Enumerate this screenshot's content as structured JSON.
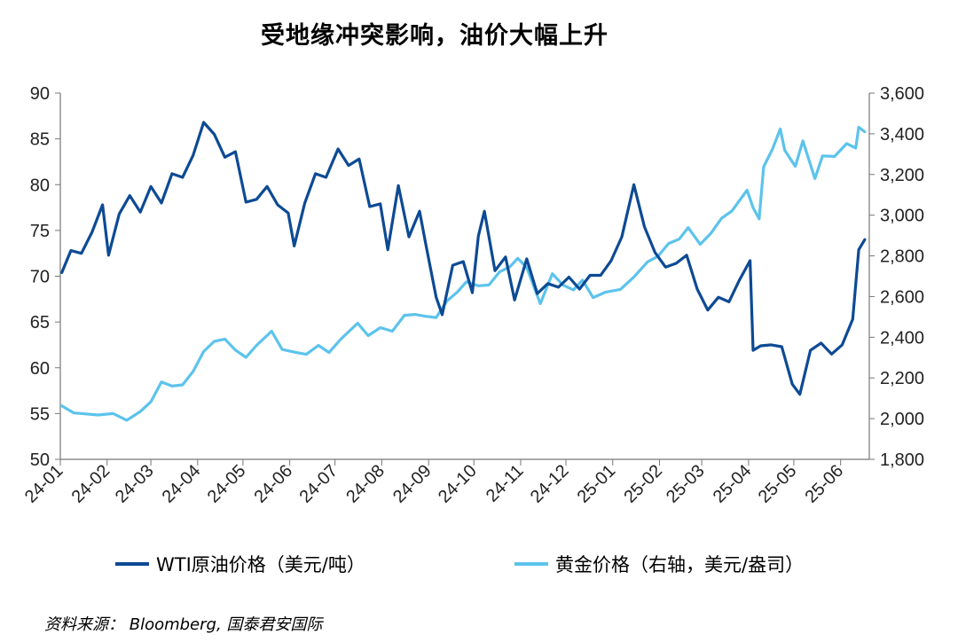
{
  "title": "受地缘冲突影响，油价大幅上升",
  "source": "资料来源： Bloomberg, 国泰君安国际",
  "chart_data": {
    "type": "line",
    "title": "受地缘冲突影响，油价大幅上升",
    "x_ticks": [
      "24-01",
      "24-02",
      "24-03",
      "24-04",
      "24-05",
      "24-06",
      "24-07",
      "24-08",
      "24-09",
      "24-10",
      "24-11",
      "24-12",
      "25-01",
      "25-02",
      "25-03",
      "25-04",
      "25-05",
      "25-06"
    ],
    "y_left": {
      "min": 50,
      "max": 90,
      "ticks": [
        "50",
        "55",
        "60",
        "65",
        "70",
        "75",
        "80",
        "85",
        "90"
      ]
    },
    "y_right": {
      "min": 1800,
      "max": 3600,
      "ticks": [
        "1,800",
        "2,000",
        "2,200",
        "2,400",
        "2,600",
        "2,800",
        "3,000",
        "3,200",
        "3,400",
        "3,600"
      ]
    },
    "x_range": [
      "2024-01-01",
      "2025-06-20"
    ],
    "grid": false,
    "legend_position": "bottom",
    "series": [
      {
        "name": "WTI原油价格（美元/吨）",
        "axis": "left",
        "color": "#0d4a94",
        "points": [
          [
            "2024-01-02",
            70.4
          ],
          [
            "2024-01-08",
            72.8
          ],
          [
            "2024-01-15",
            72.5
          ],
          [
            "2024-01-22",
            74.8
          ],
          [
            "2024-01-29",
            77.8
          ],
          [
            "2024-02-02",
            72.3
          ],
          [
            "2024-02-09",
            76.8
          ],
          [
            "2024-02-16",
            78.8
          ],
          [
            "2024-02-23",
            77.0
          ],
          [
            "2024-03-01",
            79.8
          ],
          [
            "2024-03-08",
            78.0
          ],
          [
            "2024-03-15",
            81.2
          ],
          [
            "2024-03-22",
            80.8
          ],
          [
            "2024-03-29",
            83.2
          ],
          [
            "2024-04-05",
            86.8
          ],
          [
            "2024-04-12",
            85.5
          ],
          [
            "2024-04-19",
            83.0
          ],
          [
            "2024-04-26",
            83.6
          ],
          [
            "2024-05-03",
            78.1
          ],
          [
            "2024-05-10",
            78.4
          ],
          [
            "2024-05-17",
            79.8
          ],
          [
            "2024-05-24",
            77.8
          ],
          [
            "2024-05-31",
            76.9
          ],
          [
            "2024-06-04",
            73.3
          ],
          [
            "2024-06-11",
            78.0
          ],
          [
            "2024-06-18",
            81.2
          ],
          [
            "2024-06-25",
            80.8
          ],
          [
            "2024-07-03",
            83.9
          ],
          [
            "2024-07-10",
            82.1
          ],
          [
            "2024-07-17",
            82.8
          ],
          [
            "2024-07-24",
            77.6
          ],
          [
            "2024-07-31",
            77.9
          ],
          [
            "2024-08-05",
            72.9
          ],
          [
            "2024-08-12",
            79.9
          ],
          [
            "2024-08-19",
            74.3
          ],
          [
            "2024-08-26",
            77.1
          ],
          [
            "2024-08-30",
            73.6
          ],
          [
            "2024-09-06",
            67.7
          ],
          [
            "2024-09-10",
            65.8
          ],
          [
            "2024-09-17",
            71.2
          ],
          [
            "2024-09-24",
            71.6
          ],
          [
            "2024-09-30",
            68.2
          ],
          [
            "2024-10-04",
            74.4
          ],
          [
            "2024-10-08",
            77.1
          ],
          [
            "2024-10-15",
            70.6
          ],
          [
            "2024-10-22",
            72.1
          ],
          [
            "2024-10-28",
            67.4
          ],
          [
            "2024-11-05",
            71.9
          ],
          [
            "2024-11-12",
            68.1
          ],
          [
            "2024-11-19",
            69.2
          ],
          [
            "2024-11-26",
            68.8
          ],
          [
            "2024-12-03",
            69.9
          ],
          [
            "2024-12-10",
            68.6
          ],
          [
            "2024-12-17",
            70.1
          ],
          [
            "2024-12-24",
            70.1
          ],
          [
            "2024-12-31",
            71.7
          ],
          [
            "2025-01-07",
            74.3
          ],
          [
            "2025-01-15",
            80.0
          ],
          [
            "2025-01-22",
            75.4
          ],
          [
            "2025-01-29",
            72.6
          ],
          [
            "2025-02-05",
            71.0
          ],
          [
            "2025-02-12",
            71.4
          ],
          [
            "2025-02-19",
            72.3
          ],
          [
            "2025-02-26",
            68.6
          ],
          [
            "2025-03-05",
            66.3
          ],
          [
            "2025-03-12",
            67.7
          ],
          [
            "2025-03-19",
            67.2
          ],
          [
            "2025-03-26",
            69.6
          ],
          [
            "2025-04-02",
            71.7
          ],
          [
            "2025-04-04",
            61.9
          ],
          [
            "2025-04-09",
            62.4
          ],
          [
            "2025-04-16",
            62.5
          ],
          [
            "2025-04-23",
            62.3
          ],
          [
            "2025-04-30",
            58.2
          ],
          [
            "2025-05-05",
            57.1
          ],
          [
            "2025-05-12",
            61.9
          ],
          [
            "2025-05-19",
            62.7
          ],
          [
            "2025-05-26",
            61.5
          ],
          [
            "2025-06-02",
            62.5
          ],
          [
            "2025-06-09",
            65.3
          ],
          [
            "2025-06-13",
            72.9
          ],
          [
            "2025-06-17",
            74.0
          ]
        ]
      },
      {
        "name": "黄金价格（右轴，美元/盎司）",
        "axis": "right",
        "color": "#5cc3ec",
        "points": [
          [
            "2024-01-02",
            2063
          ],
          [
            "2024-01-10",
            2028
          ],
          [
            "2024-01-18",
            2023
          ],
          [
            "2024-01-26",
            2018
          ],
          [
            "2024-02-05",
            2025
          ],
          [
            "2024-02-14",
            1992
          ],
          [
            "2024-02-23",
            2035
          ],
          [
            "2024-03-01",
            2083
          ],
          [
            "2024-03-08",
            2180
          ],
          [
            "2024-03-15",
            2160
          ],
          [
            "2024-03-22",
            2166
          ],
          [
            "2024-03-29",
            2232
          ],
          [
            "2024-04-05",
            2330
          ],
          [
            "2024-04-12",
            2380
          ],
          [
            "2024-04-19",
            2391
          ],
          [
            "2024-04-26",
            2337
          ],
          [
            "2024-05-03",
            2301
          ],
          [
            "2024-05-10",
            2360
          ],
          [
            "2024-05-20",
            2430
          ],
          [
            "2024-05-27",
            2340
          ],
          [
            "2024-06-04",
            2327
          ],
          [
            "2024-06-12",
            2316
          ],
          [
            "2024-06-20",
            2360
          ],
          [
            "2024-06-27",
            2325
          ],
          [
            "2024-07-05",
            2392
          ],
          [
            "2024-07-16",
            2469
          ],
          [
            "2024-07-23",
            2408
          ],
          [
            "2024-07-31",
            2447
          ],
          [
            "2024-08-08",
            2430
          ],
          [
            "2024-08-16",
            2508
          ],
          [
            "2024-08-23",
            2512
          ],
          [
            "2024-08-30",
            2503
          ],
          [
            "2024-09-06",
            2497
          ],
          [
            "2024-09-13",
            2577
          ],
          [
            "2024-09-20",
            2622
          ],
          [
            "2024-09-26",
            2672
          ],
          [
            "2024-10-04",
            2653
          ],
          [
            "2024-10-11",
            2657
          ],
          [
            "2024-10-18",
            2721
          ],
          [
            "2024-10-25",
            2747
          ],
          [
            "2024-10-30",
            2788
          ],
          [
            "2024-11-05",
            2743
          ],
          [
            "2024-11-14",
            2565
          ],
          [
            "2024-11-22",
            2712
          ],
          [
            "2024-11-29",
            2657
          ],
          [
            "2024-12-06",
            2633
          ],
          [
            "2024-12-12",
            2681
          ],
          [
            "2024-12-19",
            2595
          ],
          [
            "2024-12-27",
            2621
          ],
          [
            "2025-01-06",
            2635
          ],
          [
            "2025-01-15",
            2696
          ],
          [
            "2025-01-24",
            2770
          ],
          [
            "2025-01-31",
            2798
          ],
          [
            "2025-02-07",
            2861
          ],
          [
            "2025-02-14",
            2882
          ],
          [
            "2025-02-20",
            2939
          ],
          [
            "2025-02-28",
            2857
          ],
          [
            "2025-03-07",
            2910
          ],
          [
            "2025-03-14",
            2984
          ],
          [
            "2025-03-21",
            3021
          ],
          [
            "2025-03-31",
            3123
          ],
          [
            "2025-04-04",
            3037
          ],
          [
            "2025-04-08",
            2982
          ],
          [
            "2025-04-11",
            3238
          ],
          [
            "2025-04-17",
            3327
          ],
          [
            "2025-04-22",
            3424
          ],
          [
            "2025-04-25",
            3319
          ],
          [
            "2025-05-02",
            3240
          ],
          [
            "2025-05-07",
            3365
          ],
          [
            "2025-05-15",
            3180
          ],
          [
            "2025-05-20",
            3291
          ],
          [
            "2025-05-28",
            3289
          ],
          [
            "2025-06-05",
            3352
          ],
          [
            "2025-06-11",
            3330
          ],
          [
            "2025-06-13",
            3432
          ],
          [
            "2025-06-17",
            3410
          ]
        ]
      }
    ]
  }
}
